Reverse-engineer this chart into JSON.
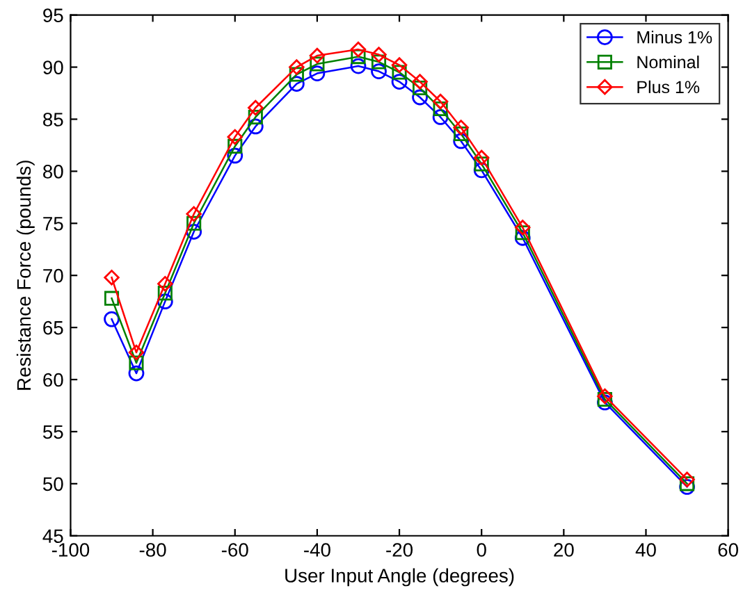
{
  "chart_data": {
    "type": "line",
    "xlabel": "User Input Angle (degrees)",
    "ylabel": "Resistance Force (pounds)",
    "x": [
      -90,
      -84,
      -77,
      -70,
      -60,
      -55,
      -45,
      -40,
      -30,
      -25,
      -20,
      -15,
      -10,
      -5,
      0,
      10,
      30,
      50
    ],
    "series": [
      {
        "name": "Minus 1%",
        "color": "#0000ff",
        "marker": "circle",
        "values": [
          65.8,
          60.6,
          67.5,
          74.2,
          81.5,
          84.3,
          88.4,
          89.4,
          90.1,
          89.6,
          88.6,
          87.1,
          85.2,
          82.9,
          80.1,
          73.6,
          57.8,
          49.7
        ]
      },
      {
        "name": "Nominal",
        "color": "#008000",
        "marker": "square",
        "values": [
          67.8,
          61.6,
          68.3,
          75.0,
          82.4,
          85.2,
          89.3,
          90.3,
          91.0,
          90.5,
          89.5,
          88.0,
          86.0,
          83.6,
          80.7,
          74.1,
          58.1,
          50.0
        ]
      },
      {
        "name": "Plus 1%",
        "color": "#ff0000",
        "marker": "diamond",
        "values": [
          69.8,
          62.6,
          69.2,
          75.9,
          83.3,
          86.1,
          90.0,
          91.1,
          91.7,
          91.2,
          90.2,
          88.6,
          86.7,
          84.2,
          81.3,
          74.6,
          58.4,
          50.4
        ]
      }
    ],
    "xlim": [
      -100,
      60
    ],
    "xticks": [
      -100,
      -80,
      -60,
      -40,
      -20,
      0,
      20,
      40,
      60
    ],
    "ylim": [
      45,
      95
    ],
    "yticks": [
      45,
      50,
      55,
      60,
      65,
      70,
      75,
      80,
      85,
      90,
      95
    ],
    "grid": false,
    "legend": "top right",
    "line_style": "solid"
  }
}
